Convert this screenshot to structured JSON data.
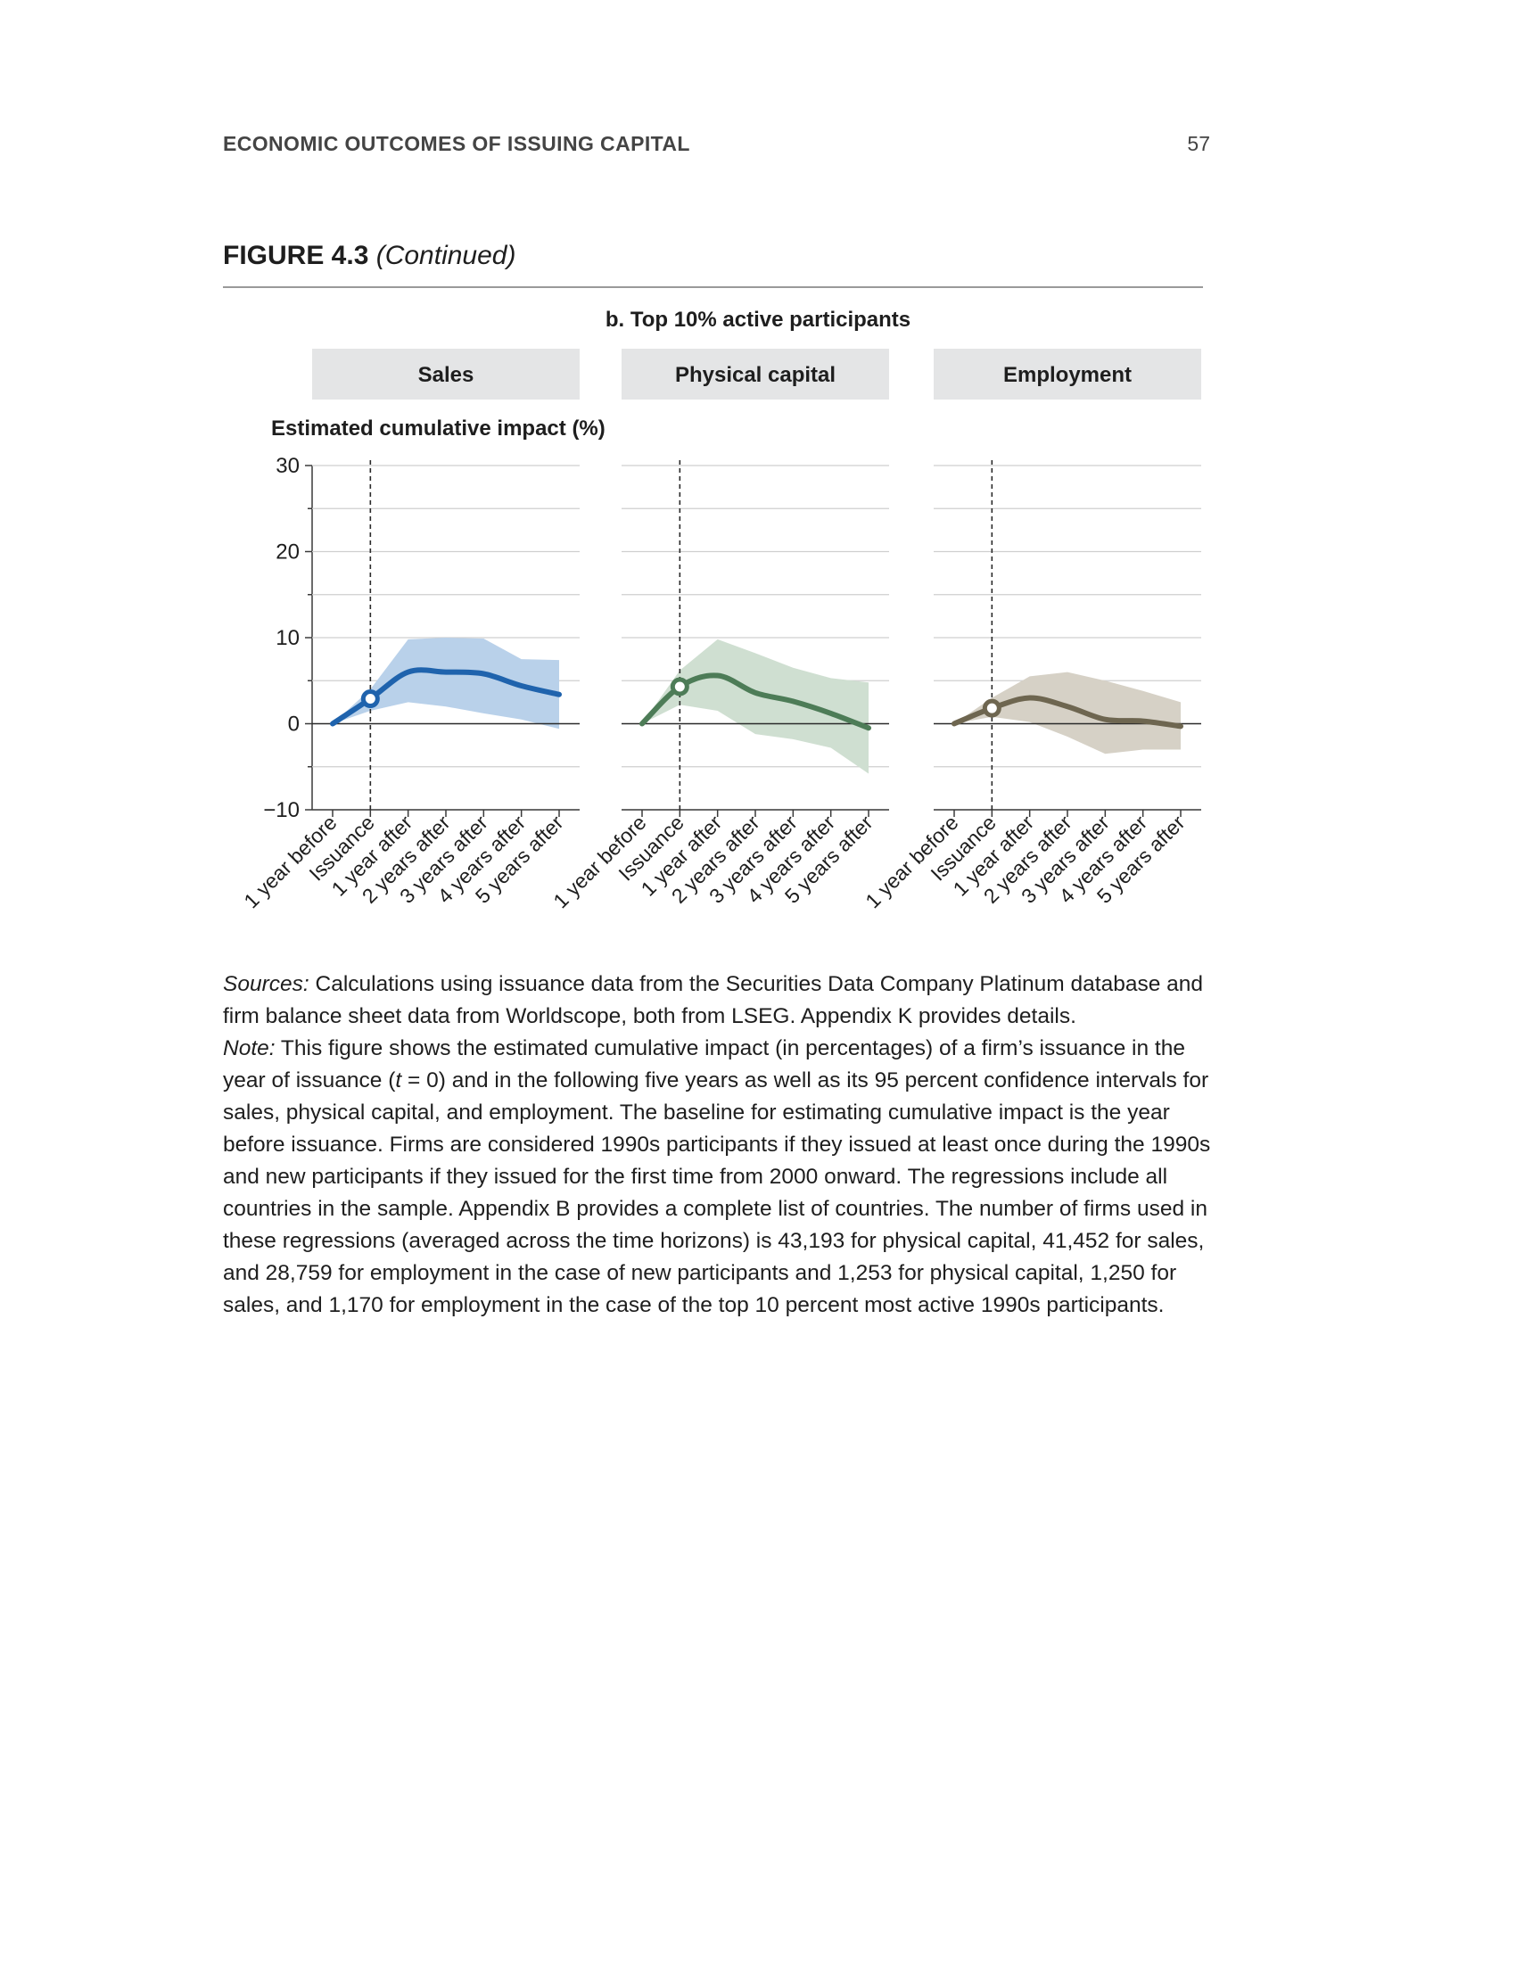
{
  "header": {
    "running_head": "ECONOMIC OUTCOMES OF ISSUING CAPITAL",
    "page_number": "57"
  },
  "figure": {
    "number": "FIGURE 4.3",
    "continued": "(Continued)",
    "panel_title": "b. Top 10% active participants"
  },
  "colors": {
    "sales": "#1f63ad",
    "sales_band": "#b9d1ea",
    "physical": "#4d7c57",
    "physical_band": "#cfdfd1",
    "employment": "#6e6650",
    "employment_band": "#d6d1c6",
    "panel_header_bg": "#e4e5e6"
  },
  "chart_data": [
    {
      "type": "line",
      "title": "Sales",
      "ylabel": "Estimated cumulative impact (%)",
      "ylim": [
        -10,
        30
      ],
      "yticks": [
        "30",
        "20",
        "10",
        "0",
        "−10"
      ],
      "categories": [
        "1 year before",
        "Issuance",
        "1 year after",
        "2 years after",
        "3 years after",
        "4 years after",
        "5 years after"
      ],
      "series": [
        {
          "values": [
            0,
            2.9,
            6.0,
            6.0,
            5.8,
            4.4,
            3.4
          ]
        }
      ],
      "ci_upper": [
        0,
        4.0,
        9.8,
        10.0,
        9.9,
        7.5,
        7.4
      ],
      "ci_lower": [
        0,
        1.5,
        2.5,
        2.0,
        1.2,
        0.5,
        -0.6
      ],
      "grid": true
    },
    {
      "type": "line",
      "title": "Physical capital",
      "ylim": [
        -10,
        30
      ],
      "categories": [
        "1 year before",
        "Issuance",
        "1 year after",
        "2 years after",
        "3 years after",
        "4 years after",
        "5 years after"
      ],
      "series": [
        {
          "values": [
            0,
            4.3,
            5.6,
            3.6,
            2.6,
            1.2,
            -0.5
          ]
        }
      ],
      "ci_upper": [
        0,
        6.2,
        9.8,
        8.2,
        6.5,
        5.3,
        4.8
      ],
      "ci_lower": [
        0,
        2.2,
        1.5,
        -1.2,
        -1.8,
        -2.8,
        -5.8
      ],
      "grid": true
    },
    {
      "type": "line",
      "title": "Employment",
      "ylim": [
        -10,
        30
      ],
      "categories": [
        "1 year before",
        "Issuance",
        "1 year after",
        "2 years after",
        "3 years after",
        "4 years after",
        "5 years after"
      ],
      "series": [
        {
          "values": [
            0,
            1.8,
            3.0,
            2.0,
            0.5,
            0.3,
            -0.3
          ]
        }
      ],
      "ci_upper": [
        0,
        3.0,
        5.5,
        6.0,
        5.0,
        3.8,
        2.5
      ],
      "ci_lower": [
        0,
        0.8,
        0.2,
        -1.5,
        -3.5,
        -3.0,
        -3.0
      ],
      "grid": true
    }
  ],
  "notes": {
    "sources_label": "Sources:",
    "sources_text": " Calculations using issuance data from the Securities Data Company Platinum database and firm balance sheet data from Worldscope, both from LSEG. Appendix K provides details.",
    "note_label": "Note:",
    "note_text_1": " This figure shows the estimated cumulative impact (in percentages) of a firm’s issuance in the year of issuance (",
    "note_t": "t",
    "note_text_2": " = 0) and in the following five years as well as its 95 percent confidence intervals for sales, physical capital, and employment. The baseline for estimating cumulative impact is the year before issuance. Firms are considered 1990s participants if they issued at least once during the 1990s and new participants if they issued for the first time from 2000 onward. The regressions include all countries in the sample. Appendix B provides a complete list of countries. The number of firms used in these regressions (averaged across the time horizons) is 43,193 for physical capital, 41,452 for sales, and 28,759 for employment in the case of new participants and 1,253 for physical capital, 1,250 for sales, and 1,170 for employment in the case of the top 10 percent most active 1990s participants."
  }
}
